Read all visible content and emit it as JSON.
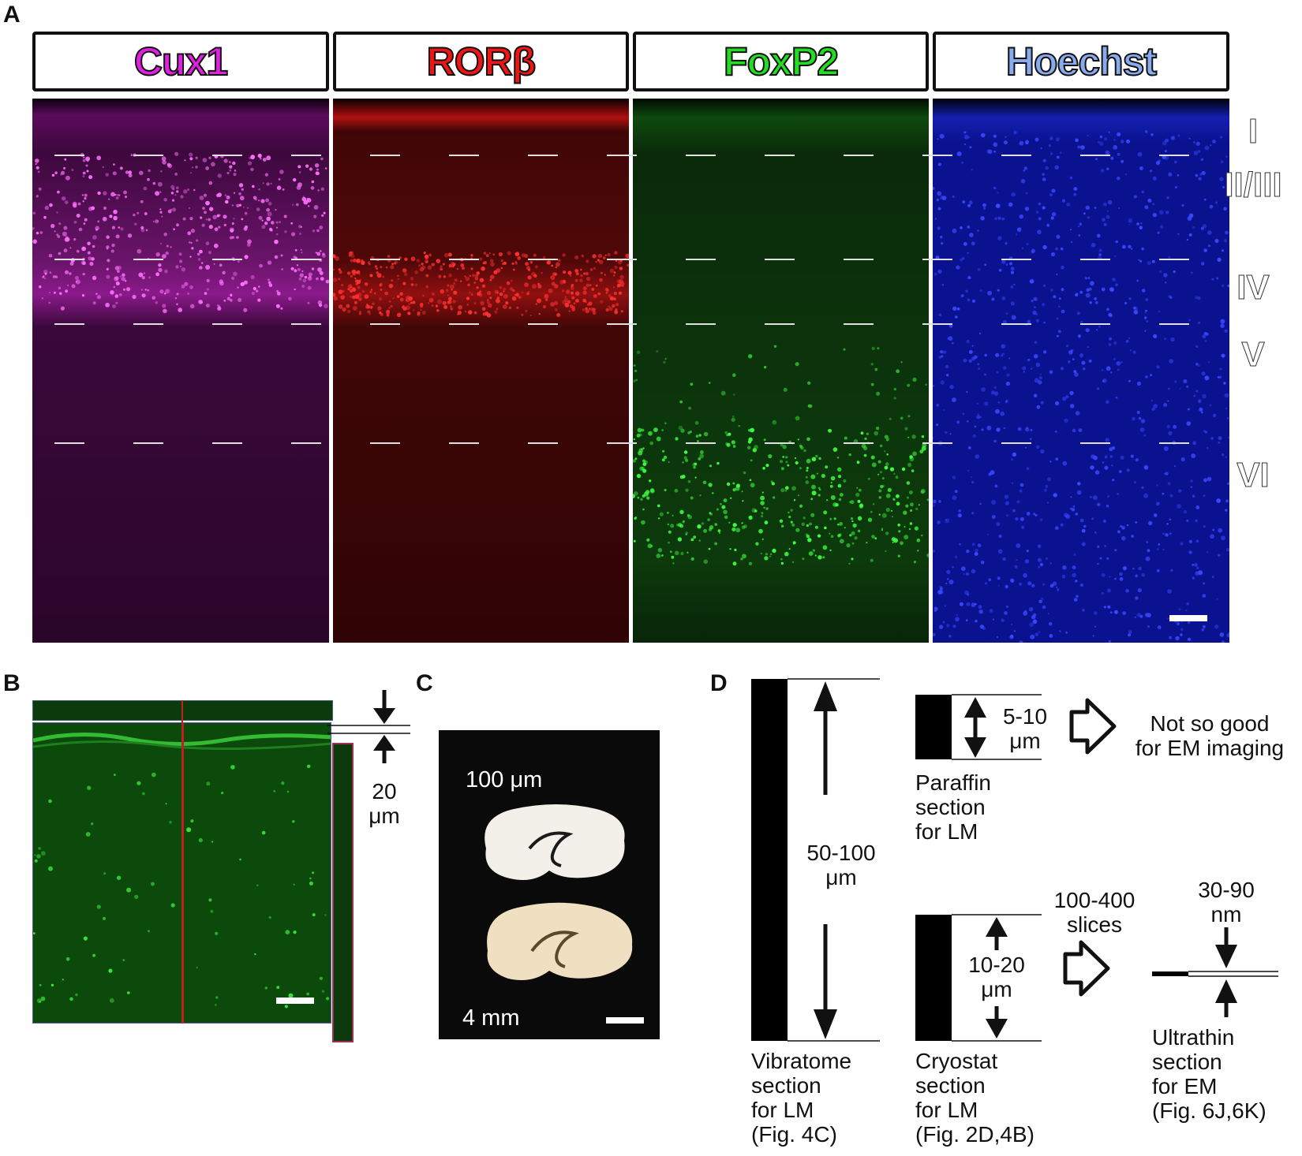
{
  "panels": {
    "a": "A",
    "b": "B",
    "c": "C",
    "d": "D"
  },
  "panel_a": {
    "headers": [
      {
        "label": "Cux1",
        "color": "#e020e0"
      },
      {
        "label": "RORβ",
        "color": "#ee1515"
      },
      {
        "label": "FoxP2",
        "color": "#22dd22"
      },
      {
        "label": "Hoechst",
        "color": "#88aaee"
      }
    ],
    "layers": [
      "I",
      "II/III",
      "IV",
      "V",
      "VI"
    ],
    "channel_colors": [
      "#a020a0",
      "#e01010",
      "#20c020",
      "#2030e0"
    ]
  },
  "panel_b": {
    "thickness_value": "20",
    "thickness_unit": "μm"
  },
  "panel_c": {
    "top_label": "100 μm",
    "bottom_label": "4 mm"
  },
  "panel_d": {
    "vibratome": {
      "thickness_lines": [
        "50-100",
        "μm"
      ],
      "caption_lines": [
        "Vibratome",
        "section",
        "for LM",
        "(Fig. 4C)"
      ]
    },
    "paraffin": {
      "thickness_lines": [
        "5-10",
        "μm"
      ],
      "caption_lines": [
        "Paraffin",
        "section",
        "for LM"
      ],
      "result_lines": [
        "Not so good",
        "for EM imaging"
      ]
    },
    "cryostat": {
      "thickness_lines": [
        "10-20",
        "μm"
      ],
      "caption_lines": [
        "Cryostat",
        "section",
        "for LM",
        "(Fig. 2D,4B)"
      ],
      "slices_lines": [
        "100-400",
        "slices"
      ]
    },
    "ultrathin": {
      "thickness_lines": [
        "30-90",
        "nm"
      ],
      "caption_lines": [
        "Ultrathin",
        "section",
        "for EM",
        "(Fig. 6J,6K)"
      ]
    }
  }
}
